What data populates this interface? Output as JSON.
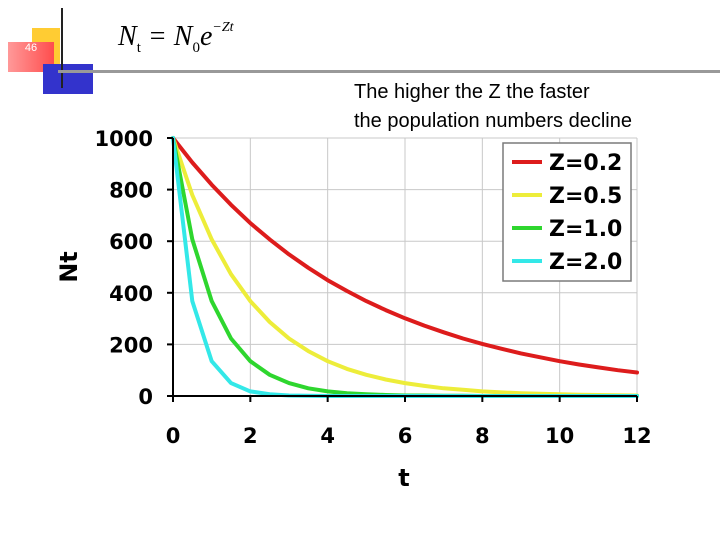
{
  "slide": {
    "number": "46",
    "formula": {
      "lhs": "N",
      "lhs_sub": "t",
      "equals": " = ",
      "rhs": "N",
      "rhs_sub": "0",
      "base": "e",
      "exponent": "−Zt"
    },
    "caption_line1": "The higher the Z the faster",
    "caption_line2": "the population numbers decline",
    "decor_colors": {
      "yellow": "#ffcc33",
      "red": "#ff4d4d",
      "blue": "#3333cc"
    }
  },
  "chart_data": {
    "type": "line",
    "title": "",
    "xlabel": "t",
    "ylabel": "Nt",
    "xlim": [
      0,
      12
    ],
    "ylim": [
      0,
      1000
    ],
    "x_ticks": [
      "0",
      "2",
      "4",
      "6",
      "8",
      "10",
      "12"
    ],
    "y_ticks": [
      "0",
      "200",
      "400",
      "600",
      "800",
      "1000"
    ],
    "grid": true,
    "legend_position": "top-right",
    "x": [
      0,
      0.5,
      1,
      1.5,
      2,
      2.5,
      3,
      3.5,
      4,
      4.5,
      5,
      5.5,
      6,
      6.5,
      7,
      7.5,
      8,
      8.5,
      9,
      9.5,
      10,
      10.5,
      11,
      11.5,
      12
    ],
    "series": [
      {
        "name": "Z=0.2",
        "color": "#dd1c1c",
        "values": [
          1000,
          905,
          819,
          741,
          670,
          607,
          549,
          497,
          449,
          407,
          368,
          333,
          301,
          273,
          247,
          223,
          202,
          183,
          165,
          150,
          135,
          122,
          111,
          100,
          91
        ]
      },
      {
        "name": "Z=0.5",
        "color": "#eded3a",
        "values": [
          1000,
          779,
          607,
          472,
          368,
          287,
          223,
          174,
          135,
          105,
          82,
          64,
          50,
          39,
          30,
          24,
          18,
          14,
          11,
          9,
          7,
          5,
          4,
          3,
          2
        ]
      },
      {
        "name": "Z=1.0",
        "color": "#2ed62e",
        "values": [
          1000,
          607,
          368,
          223,
          135,
          82,
          50,
          30,
          18,
          11,
          7,
          4,
          2,
          2,
          1,
          1,
          0,
          0,
          0,
          0,
          0,
          0,
          0,
          0,
          0
        ]
      },
      {
        "name": "Z=2.0",
        "color": "#33e8e8",
        "values": [
          1000,
          368,
          135,
          50,
          18,
          7,
          2,
          1,
          0,
          0,
          0,
          0,
          0,
          0,
          0,
          0,
          0,
          0,
          0,
          0,
          0,
          0,
          0,
          0,
          0
        ]
      }
    ]
  }
}
